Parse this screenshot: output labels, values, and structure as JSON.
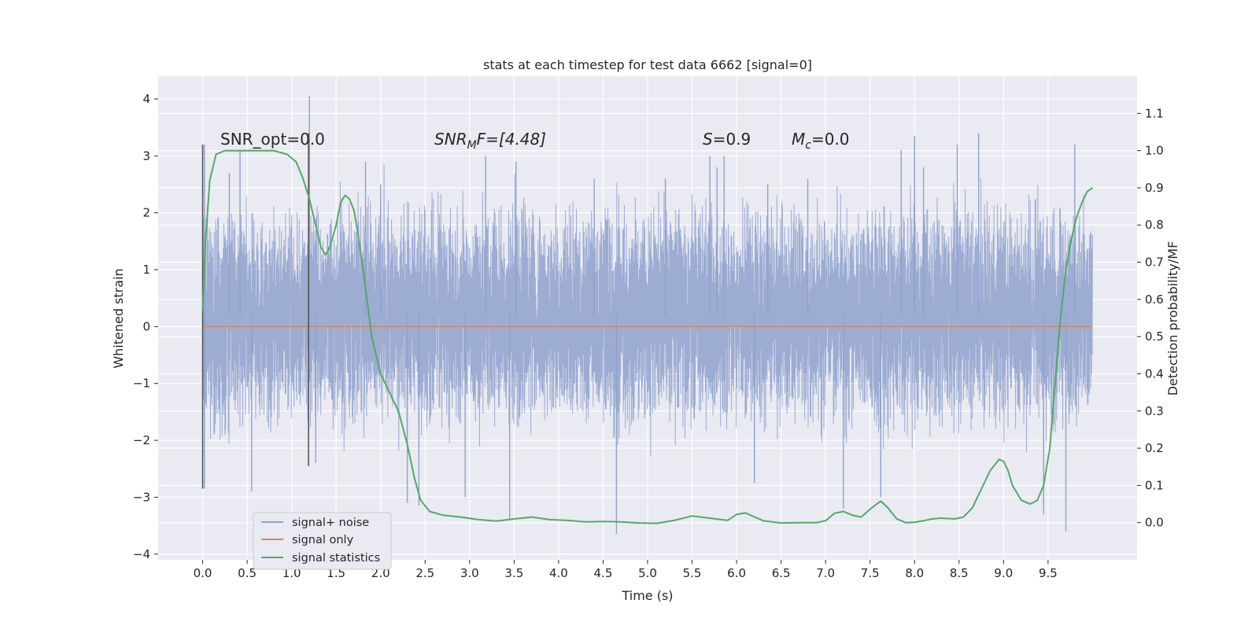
{
  "chart_data": {
    "type": "line",
    "title": "stats at each timestep for test data 6662 [signal=0]",
    "xlabel": "Time (s)",
    "ylabel": "Whitened strain",
    "ylabel_right": "Detection probability/MF",
    "xlim": [
      -0.5,
      10.5
    ],
    "ylim": [
      -4.1,
      4.4
    ],
    "ylim_right": [
      -0.1,
      1.2
    ],
    "xticks": [
      0.0,
      0.5,
      1.0,
      1.5,
      2.0,
      2.5,
      3.0,
      3.5,
      4.0,
      4.5,
      5.0,
      5.5,
      6.0,
      6.5,
      7.0,
      7.5,
      8.0,
      8.5,
      9.0,
      9.5
    ],
    "xtick_labels": [
      "0.0",
      "0.5",
      "1.0",
      "1.5",
      "2.0",
      "2.5",
      "3.0",
      "3.5",
      "4.0",
      "4.5",
      "5.0",
      "5.5",
      "6.0",
      "6.5",
      "7.0",
      "7.5",
      "8.0",
      "8.5",
      "9.0",
      "9.5"
    ],
    "yticks": [
      4,
      3,
      2,
      1,
      0,
      -1,
      -2,
      -3,
      -4
    ],
    "ytick_labels": [
      "4",
      "3",
      "2",
      "1",
      "0",
      "−1",
      "−2",
      "−3",
      "−4"
    ],
    "yticks_right": [
      1.1,
      1.0,
      0.9,
      0.8,
      0.7,
      0.6,
      0.5,
      0.4,
      0.3,
      0.2,
      0.1,
      0.0
    ],
    "ytick_labels_right": [
      "1.1",
      "1.0",
      "0.9",
      "0.8",
      "0.7",
      "0.6",
      "0.5",
      "0.4",
      "0.3",
      "0.2",
      "0.1",
      "0.0"
    ],
    "grid": true,
    "legend_position": "lower-left",
    "colors": {
      "noise": "#8ea1cd",
      "signal": "#dd8452",
      "stat": "#55a868",
      "vline": "#555555"
    },
    "annotations": {
      "snr_opt": "SNR_opt=0.0",
      "snr_mf_main": "SNR",
      "snr_mf_sub": "M",
      "snr_mf_tail": "F=[4.48]",
      "s_label": "S",
      "s_value": "=0.9",
      "mc_main": "M",
      "mc_sub": "c",
      "mc_value": "=0.0"
    },
    "series": [
      {
        "name": "signal+ noise",
        "axis": "left",
        "duration": 10.0,
        "band": [
          -1.0,
          1.4
        ],
        "spikes": [
          [
            0.02,
            -2.85
          ],
          [
            0.02,
            3.2
          ],
          [
            0.3,
            2.7
          ],
          [
            0.42,
            3.1
          ],
          [
            0.55,
            -2.9
          ],
          [
            1.2,
            4.05
          ],
          [
            1.27,
            -2.4
          ],
          [
            1.83,
            2.9
          ],
          [
            2.0,
            2.5
          ],
          [
            2.3,
            -3.1
          ],
          [
            2.43,
            -3.15
          ],
          [
            2.95,
            -3.0
          ],
          [
            3.18,
            3.0
          ],
          [
            3.45,
            -3.4
          ],
          [
            3.52,
            2.9
          ],
          [
            4.65,
            -3.65
          ],
          [
            4.4,
            2.6
          ],
          [
            5.2,
            2.6
          ],
          [
            5.7,
            3.0
          ],
          [
            5.78,
            2.8
          ],
          [
            5.86,
            3.0
          ],
          [
            6.2,
            -2.75
          ],
          [
            6.35,
            2.5
          ],
          [
            6.8,
            2.6
          ],
          [
            7.2,
            -3.2
          ],
          [
            7.62,
            -3.0
          ],
          [
            7.85,
            3.1
          ],
          [
            8.0,
            3.35
          ],
          [
            8.1,
            2.8
          ],
          [
            8.48,
            3.2
          ],
          [
            8.72,
            3.4
          ],
          [
            9.45,
            -3.3
          ],
          [
            9.7,
            -3.6
          ],
          [
            9.8,
            3.2
          ]
        ]
      },
      {
        "name": "signal only",
        "axis": "left",
        "x": [
          0.0,
          10.0
        ],
        "y": [
          0.0,
          0.0
        ]
      },
      {
        "name": "signal statistics",
        "axis": "right",
        "x": [
          0.0,
          0.03,
          0.08,
          0.15,
          0.25,
          0.4,
          0.6,
          0.8,
          0.95,
          1.05,
          1.12,
          1.2,
          1.27,
          1.33,
          1.38,
          1.43,
          1.5,
          1.55,
          1.6,
          1.65,
          1.7,
          1.75,
          1.82,
          1.9,
          2.0,
          2.1,
          2.2,
          2.3,
          2.38,
          2.45,
          2.55,
          2.7,
          2.9,
          3.1,
          3.3,
          3.5,
          3.7,
          3.9,
          4.1,
          4.3,
          4.5,
          4.7,
          4.9,
          5.1,
          5.3,
          5.5,
          5.7,
          5.9,
          6.0,
          6.1,
          6.3,
          6.5,
          6.7,
          6.9,
          7.0,
          7.1,
          7.2,
          7.3,
          7.4,
          7.52,
          7.62,
          7.7,
          7.8,
          7.9,
          8.0,
          8.1,
          8.2,
          8.3,
          8.45,
          8.55,
          8.65,
          8.75,
          8.85,
          8.95,
          9.0,
          9.05,
          9.1,
          9.2,
          9.3,
          9.38,
          9.45,
          9.52,
          9.58,
          9.64,
          9.7,
          9.76,
          9.82,
          9.88,
          9.94,
          10.0
        ],
        "y": [
          0.57,
          0.75,
          0.92,
          0.99,
          1.0,
          1.0,
          1.0,
          1.0,
          0.99,
          0.97,
          0.93,
          0.87,
          0.8,
          0.74,
          0.72,
          0.74,
          0.8,
          0.86,
          0.88,
          0.87,
          0.84,
          0.77,
          0.65,
          0.5,
          0.4,
          0.35,
          0.3,
          0.21,
          0.12,
          0.06,
          0.03,
          0.02,
          0.015,
          0.008,
          0.004,
          0.01,
          0.015,
          0.008,
          0.006,
          0.002,
          0.003,
          0.002,
          -0.001,
          -0.002,
          0.006,
          0.018,
          0.012,
          0.006,
          0.022,
          0.026,
          0.005,
          -0.001,
          0.0,
          0.0,
          0.005,
          0.025,
          0.03,
          0.02,
          0.015,
          0.04,
          0.058,
          0.04,
          0.01,
          0.0,
          0.001,
          0.005,
          0.01,
          0.012,
          0.01,
          0.015,
          0.04,
          0.09,
          0.14,
          0.17,
          0.165,
          0.14,
          0.1,
          0.06,
          0.05,
          0.06,
          0.1,
          0.2,
          0.38,
          0.55,
          0.68,
          0.76,
          0.82,
          0.86,
          0.89,
          0.9
        ]
      }
    ],
    "vlines": [
      {
        "x": 0.0,
        "ymin": -2.85,
        "ymax": 3.2
      },
      {
        "x": 1.19,
        "ymin": -2.45,
        "ymax": 3.4
      }
    ]
  }
}
